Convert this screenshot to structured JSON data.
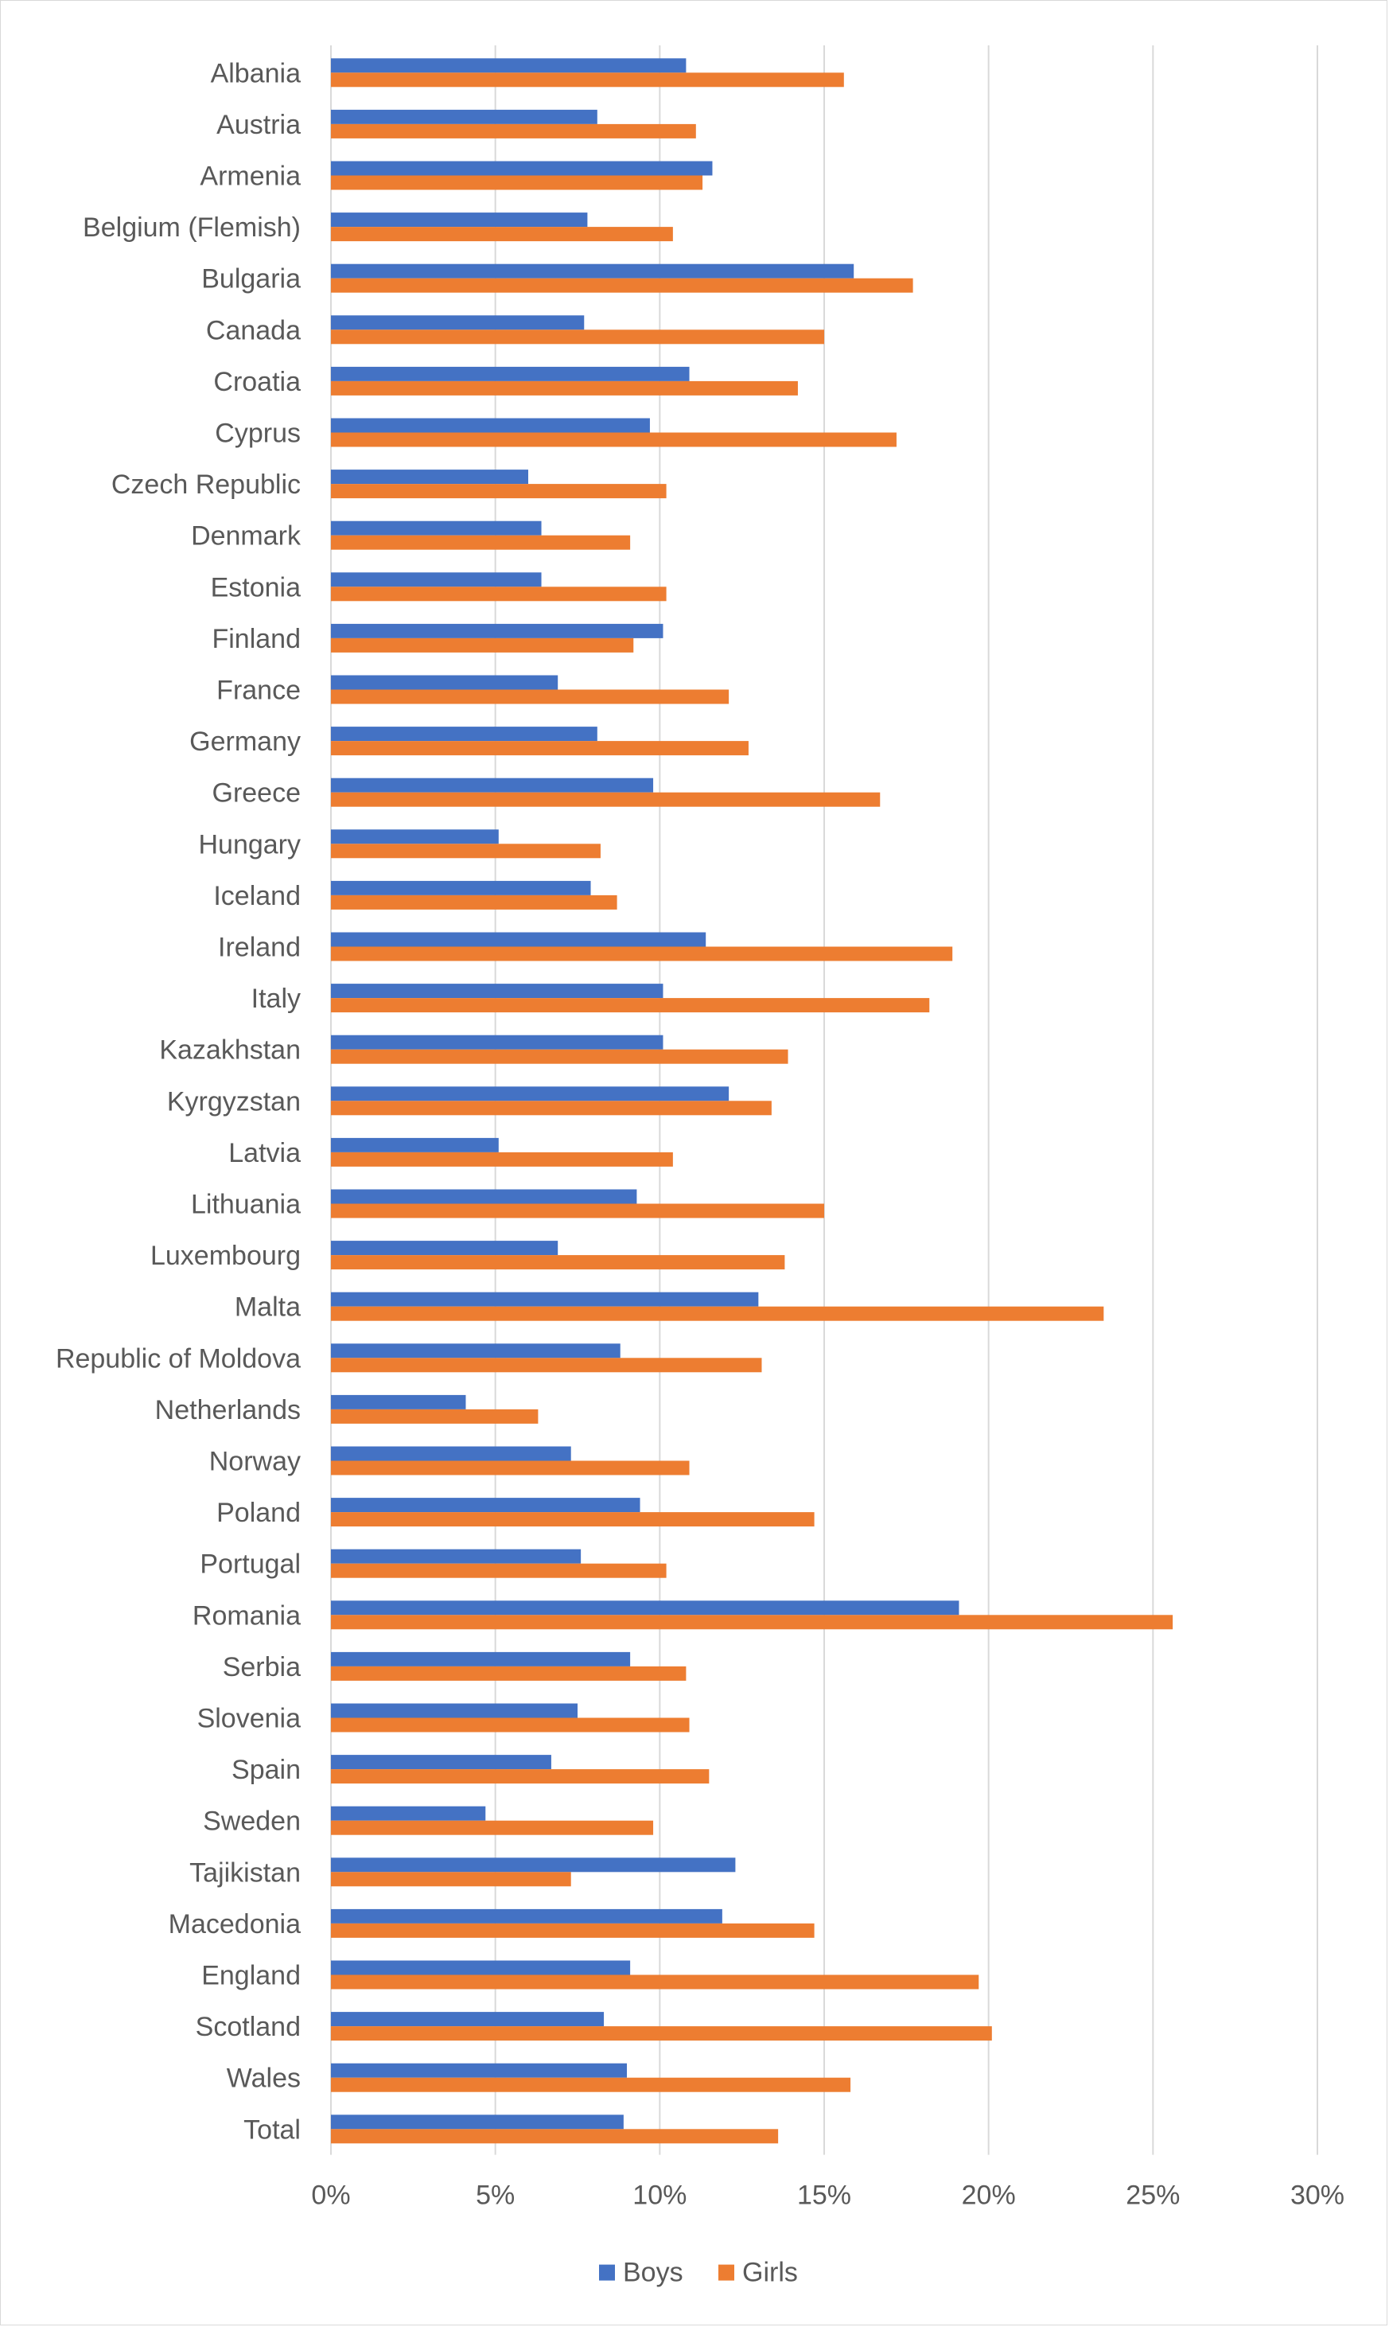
{
  "chart_data": {
    "type": "bar",
    "orientation": "horizontal",
    "title": "",
    "xlabel": "",
    "ylabel": "",
    "xlim": [
      0,
      30
    ],
    "x_ticks": [
      0,
      5,
      10,
      15,
      20,
      25,
      30
    ],
    "x_tick_labels": [
      "0%",
      "5%",
      "10%",
      "15%",
      "20%",
      "25%",
      "30%"
    ],
    "grid": "vertical",
    "legend_position": "bottom",
    "categories": [
      "Albania",
      "Austria",
      "Armenia",
      "Belgium (Flemish)",
      "Bulgaria",
      "Canada",
      "Croatia",
      "Cyprus",
      "Czech Republic",
      "Denmark",
      "Estonia",
      "Finland",
      "France",
      "Germany",
      "Greece",
      "Hungary",
      "Iceland",
      "Ireland",
      "Italy",
      "Kazakhstan",
      "Kyrgyzstan",
      "Latvia",
      "Lithuania",
      "Luxembourg",
      "Malta",
      "Republic of Moldova",
      "Netherlands",
      "Norway",
      "Poland",
      "Portugal",
      "Romania",
      "Serbia",
      "Slovenia",
      "Spain",
      "Sweden",
      "Tajikistan",
      "Macedonia",
      "England",
      "Scotland",
      "Wales",
      "Total"
    ],
    "series": [
      {
        "name": "Boys",
        "color": "#4472C4",
        "values": [
          10.8,
          8.1,
          11.6,
          7.8,
          15.9,
          7.7,
          10.9,
          9.7,
          6.0,
          6.4,
          6.4,
          10.1,
          6.9,
          8.1,
          9.8,
          5.1,
          7.9,
          11.4,
          10.1,
          10.1,
          12.1,
          5.1,
          9.3,
          6.9,
          13.0,
          8.8,
          4.1,
          7.3,
          9.4,
          7.6,
          19.1,
          9.1,
          7.5,
          6.7,
          4.7,
          12.3,
          11.9,
          9.1,
          8.3,
          9.0,
          8.9
        ]
      },
      {
        "name": "Girls",
        "color": "#ED7D31",
        "values": [
          15.6,
          11.1,
          11.3,
          10.4,
          17.7,
          15.0,
          14.2,
          17.2,
          10.2,
          9.1,
          10.2,
          9.2,
          12.1,
          12.7,
          16.7,
          8.2,
          8.7,
          18.9,
          18.2,
          13.9,
          13.4,
          10.4,
          15.0,
          13.8,
          23.5,
          13.1,
          6.3,
          10.9,
          14.7,
          10.2,
          25.6,
          10.8,
          10.9,
          11.5,
          9.8,
          7.3,
          14.7,
          19.7,
          20.1,
          15.8,
          13.6
        ]
      }
    ]
  }
}
